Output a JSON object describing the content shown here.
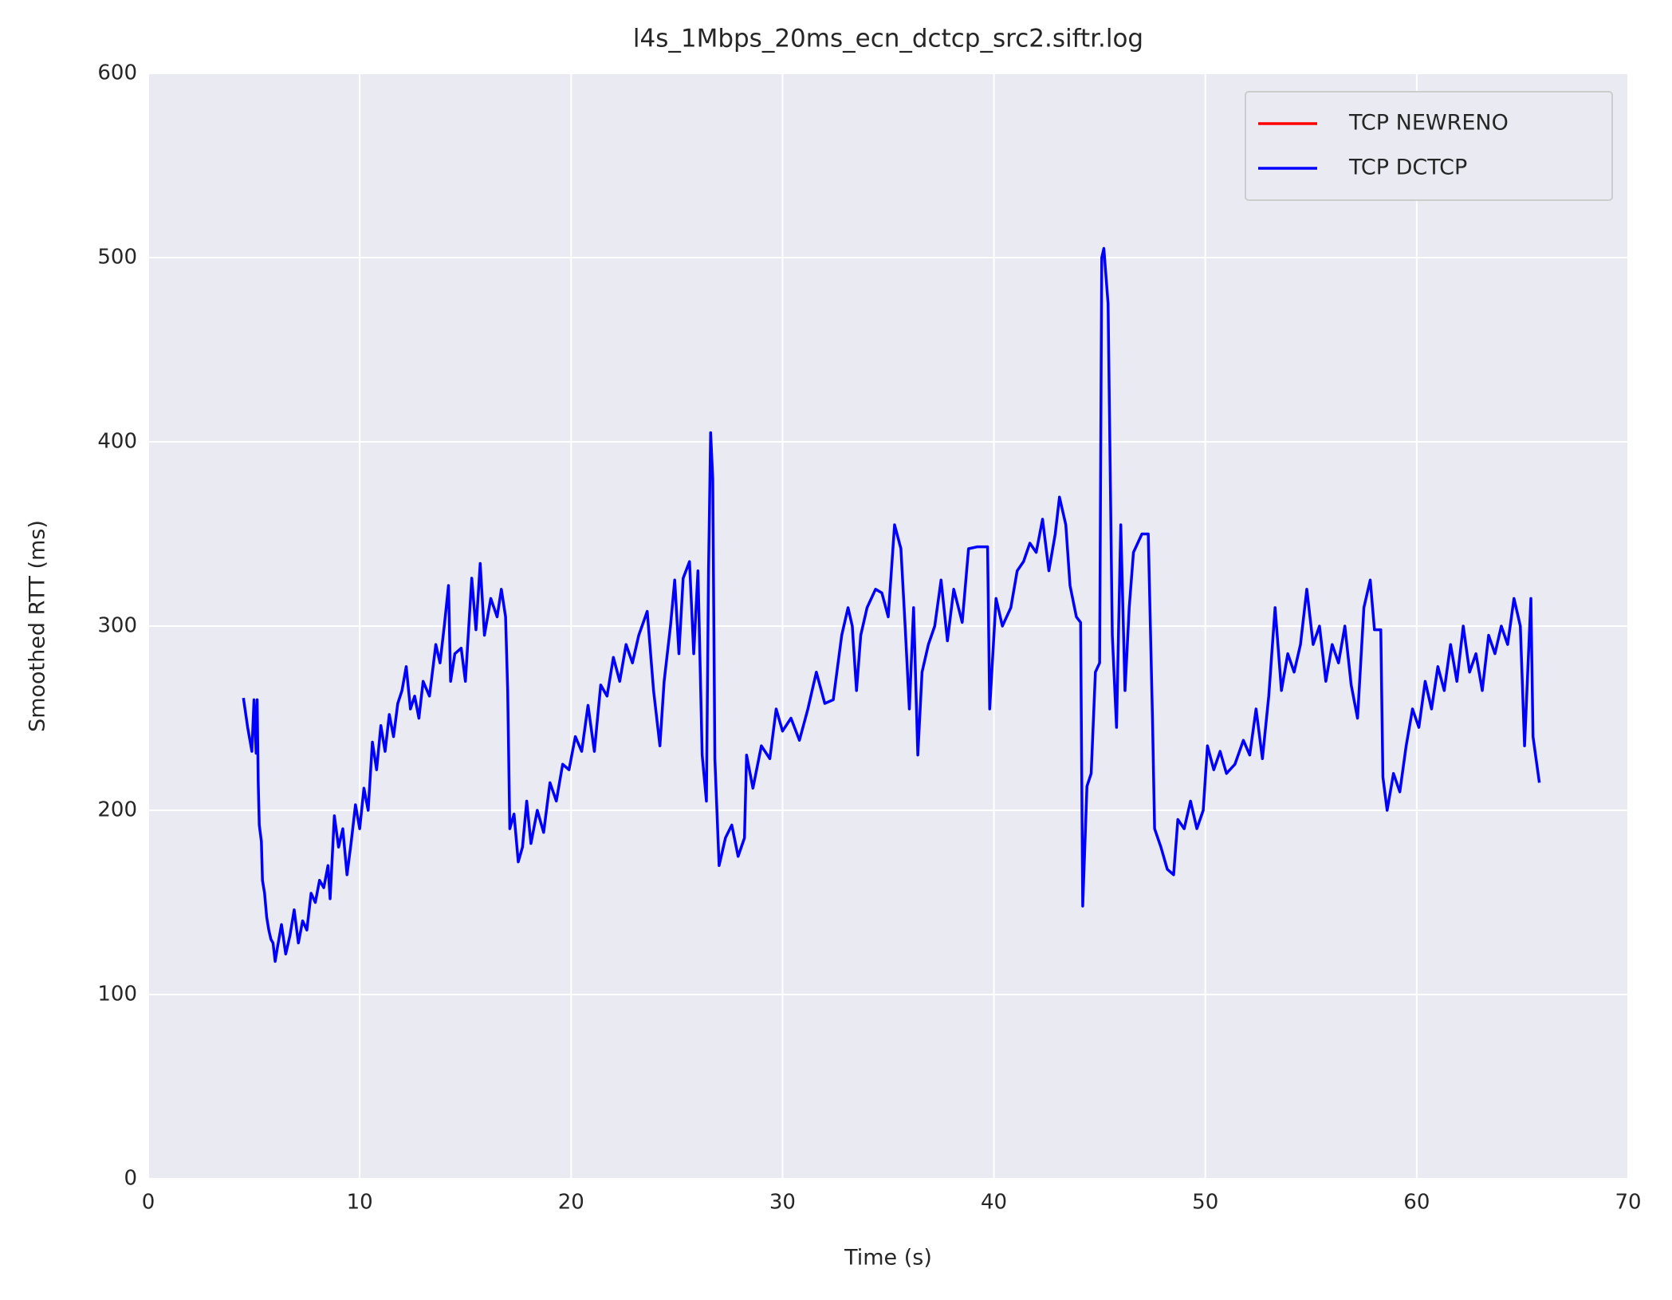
{
  "chart_data": {
    "type": "line",
    "title": "l4s_1Mbps_20ms_ecn_dctcp_src2.siftr.log",
    "xlabel": "Time (s)",
    "ylabel": "Smoothed RTT (ms)",
    "xlim": [
      0,
      70
    ],
    "xticks": [
      0,
      10,
      20,
      30,
      40,
      50,
      60,
      70
    ],
    "ylim": [
      0,
      600
    ],
    "yticks": [
      0,
      100,
      200,
      300,
      400,
      500,
      600
    ],
    "grid": true,
    "legend": "upper right",
    "series": [
      {
        "name": "TCP NEWRENO",
        "color": "#ff0000",
        "x": [],
        "values": []
      },
      {
        "name": "TCP DCTCP",
        "color": "#0000ff",
        "x": [
          4.5,
          4.7,
          4.9,
          5.0,
          5.1,
          5.15,
          5.2,
          5.25,
          5.35,
          5.4,
          5.5,
          5.6,
          5.7,
          5.8,
          5.9,
          6.0,
          6.1,
          6.3,
          6.5,
          6.7,
          6.9,
          7.1,
          7.3,
          7.5,
          7.7,
          7.9,
          8.1,
          8.3,
          8.5,
          8.6,
          8.8,
          9.0,
          9.2,
          9.4,
          9.6,
          9.8,
          10.0,
          10.2,
          10.4,
          10.6,
          10.8,
          11.0,
          11.2,
          11.4,
          11.6,
          11.8,
          12.0,
          12.2,
          12.4,
          12.6,
          12.8,
          13.0,
          13.3,
          13.6,
          13.8,
          14.0,
          14.2,
          14.3,
          14.5,
          14.8,
          15.0,
          15.3,
          15.5,
          15.7,
          15.9,
          16.2,
          16.5,
          16.7,
          16.9,
          17.0,
          17.1,
          17.3,
          17.5,
          17.7,
          17.9,
          18.1,
          18.4,
          18.7,
          19.0,
          19.3,
          19.6,
          19.9,
          20.2,
          20.5,
          20.8,
          21.1,
          21.4,
          21.7,
          22.0,
          22.3,
          22.6,
          22.9,
          23.2,
          23.6,
          23.9,
          24.2,
          24.4,
          24.7,
          24.9,
          25.1,
          25.3,
          25.6,
          25.8,
          26.0,
          26.2,
          26.4,
          26.5,
          26.6,
          26.7,
          26.8,
          27.0,
          27.3,
          27.6,
          27.9,
          28.2,
          28.3,
          28.6,
          29.0,
          29.4,
          29.7,
          30.0,
          30.4,
          30.8,
          31.2,
          31.6,
          32.0,
          32.4,
          32.8,
          33.1,
          33.3,
          33.5,
          33.7,
          34.0,
          34.4,
          34.7,
          35.0,
          35.3,
          35.6,
          35.8,
          36.0,
          36.2,
          36.4,
          36.6,
          36.9,
          37.2,
          37.5,
          37.8,
          38.1,
          38.5,
          38.8,
          39.2,
          39.7,
          39.8,
          40.1,
          40.4,
          40.8,
          41.1,
          41.4,
          41.7,
          42.0,
          42.3,
          42.6,
          42.9,
          43.1,
          43.4,
          43.6,
          43.9,
          44.1,
          44.2,
          44.4,
          44.6,
          44.8,
          45.0,
          45.1,
          45.2,
          45.4,
          45.6,
          45.8,
          46.0,
          46.2,
          46.4,
          46.6,
          46.8,
          47.0,
          47.3,
          47.5,
          47.6,
          47.9,
          48.2,
          48.5,
          48.7,
          49.0,
          49.3,
          49.6,
          49.9,
          50.1,
          50.4,
          50.7,
          51.0,
          51.4,
          51.8,
          52.1,
          52.4,
          52.7,
          53.0,
          53.3,
          53.6,
          53.9,
          54.2,
          54.5,
          54.8,
          55.1,
          55.4,
          55.7,
          56.0,
          56.3,
          56.6,
          56.9,
          57.2,
          57.5,
          57.8,
          58.0,
          58.3,
          58.4,
          58.6,
          58.9,
          59.2,
          59.5,
          59.8,
          60.1,
          60.4,
          60.7,
          61.0,
          61.3,
          61.6,
          61.9,
          62.2,
          62.5,
          62.8,
          63.1,
          63.4,
          63.7,
          64.0,
          64.3,
          64.6,
          64.9,
          65.1,
          65.4,
          65.5,
          65.8
        ],
        "values": [
          261,
          245,
          232,
          260,
          231,
          260,
          215,
          192,
          183,
          162,
          155,
          142,
          135,
          130,
          128,
          118,
          125,
          138,
          122,
          132,
          146,
          128,
          140,
          135,
          155,
          150,
          162,
          158,
          170,
          152,
          197,
          180,
          190,
          165,
          183,
          203,
          190,
          212,
          200,
          237,
          222,
          246,
          232,
          252,
          240,
          258,
          265,
          278,
          255,
          262,
          250,
          270,
          262,
          290,
          280,
          300,
          322,
          270,
          285,
          288,
          270,
          326,
          298,
          334,
          295,
          315,
          305,
          320,
          305,
          265,
          190,
          198,
          172,
          180,
          205,
          182,
          200,
          188,
          215,
          205,
          225,
          222,
          240,
          232,
          257,
          232,
          268,
          262,
          283,
          270,
          290,
          280,
          295,
          308,
          265,
          235,
          270,
          300,
          325,
          285,
          326,
          335,
          285,
          330,
          230,
          205,
          330,
          405,
          380,
          228,
          170,
          185,
          192,
          175,
          185,
          230,
          212,
          235,
          228,
          255,
          243,
          250,
          238,
          255,
          275,
          258,
          260,
          295,
          310,
          300,
          265,
          295,
          310,
          320,
          318,
          305,
          355,
          342,
          300,
          255,
          310,
          230,
          275,
          290,
          300,
          325,
          292,
          320,
          302,
          342,
          343,
          343,
          255,
          315,
          300,
          310,
          330,
          335,
          345,
          340,
          358,
          330,
          350,
          370,
          355,
          322,
          305,
          302,
          148,
          213,
          220,
          275,
          280,
          500,
          505,
          475,
          295,
          245,
          355,
          265,
          310,
          340,
          345,
          350,
          350,
          250,
          190,
          180,
          168,
          165,
          195,
          190,
          205,
          190,
          200,
          235,
          222,
          232,
          220,
          225,
          238,
          230,
          255,
          228,
          262,
          310,
          265,
          285,
          275,
          290,
          320,
          290,
          300,
          270,
          290,
          280,
          300,
          268,
          250,
          310,
          325,
          298,
          298,
          218,
          200,
          220,
          210,
          235,
          255,
          245,
          270,
          255,
          278,
          265,
          290,
          270,
          300,
          275,
          285,
          265,
          295,
          285,
          300,
          290,
          315,
          300,
          235,
          315,
          240,
          215
        ]
      }
    ]
  }
}
